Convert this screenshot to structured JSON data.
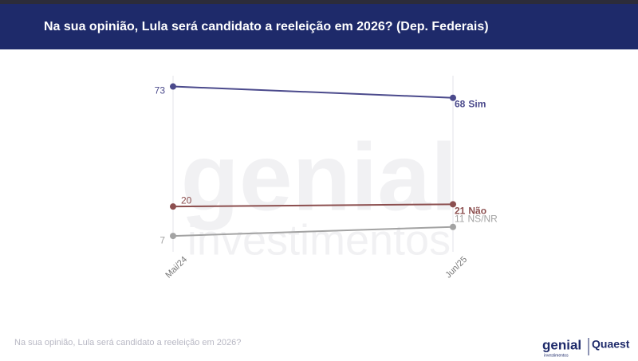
{
  "header": {
    "title": "Na sua opinião, Lula será candidato a reeleição em 2026? (Dep. Federais)"
  },
  "chart_data": {
    "type": "line",
    "categories": [
      "Mai/24",
      "Jun/25"
    ],
    "series": [
      {
        "name": "Sim",
        "color": "#4b4a8c",
        "values": [
          73,
          68
        ]
      },
      {
        "name": "Não",
        "color": "#8c4f4f",
        "values": [
          20,
          21
        ]
      },
      {
        "name": "NS/NR",
        "color": "#a3a3a3",
        "values": [
          7,
          11
        ]
      }
    ],
    "ylim": [
      0,
      76
    ],
    "grid": true
  },
  "watermark": {
    "line1": "genial",
    "line2": "investimentos"
  },
  "footer": {
    "note": "Na sua opinião, Lula será candidato a reeleição em 2026?",
    "logo1": "genial",
    "logo1_sub": "investimentos",
    "logo2": "Quaest"
  }
}
